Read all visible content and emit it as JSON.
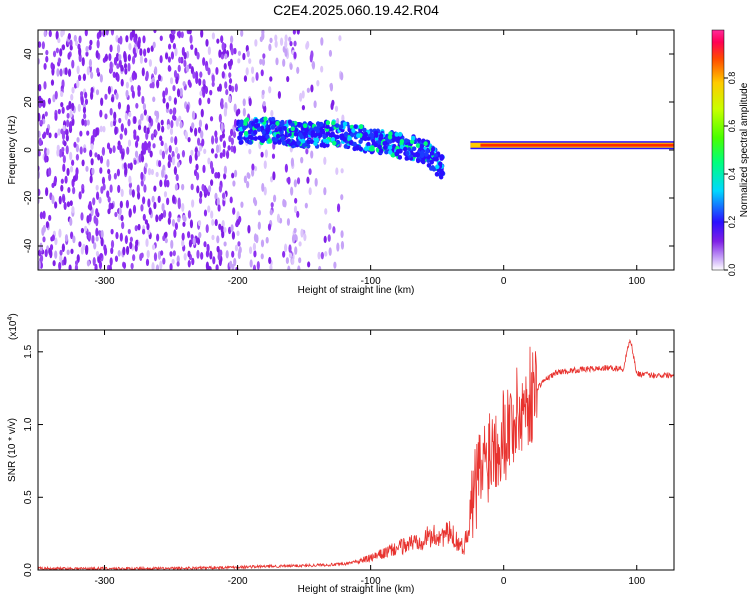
{
  "title": "C2E4.2025.060.19.42.R04",
  "chart_data": [
    {
      "type": "heatmap",
      "xlabel": "Height of straight line (km)",
      "ylabel": "Frequency (Hz)",
      "xlim": [
        -350,
        128
      ],
      "ylim": [
        -50,
        50
      ],
      "x_ticks": [
        -300,
        -200,
        -100,
        0,
        100
      ],
      "y_ticks": [
        -40,
        -20,
        0,
        20,
        40
      ],
      "colorbar": {
        "label": "Normalized spectral amplitude",
        "range": [
          0.0,
          1.0
        ],
        "ticks": [
          "0.0",
          "0.2",
          "0.4",
          "0.6",
          "0.8"
        ],
        "colors": [
          "#ffffff",
          "#c6a3f7",
          "#7f1fe6",
          "#2a0fff",
          "#00d8ff",
          "#00ff7a",
          "#48ff00",
          "#c8ff00",
          "#ffcb00",
          "#ff4a00",
          "#ff0055",
          "#ff2a9a"
        ]
      },
      "features": [
        {
          "desc": "scattered noise",
          "x_range": [
            -350,
            -120
          ],
          "freq_range": [
            -50,
            50
          ]
        },
        {
          "desc": "signal band",
          "x": [
            -200,
            -175,
            -150,
            -125,
            -100,
            -80,
            -60,
            -45
          ],
          "freq_center": [
            8,
            8,
            6,
            7,
            4,
            2,
            0,
            -8
          ]
        },
        {
          "desc": "stable tone",
          "x_range": [
            -25,
            128
          ],
          "freq": 2,
          "amplitude": 0.95
        }
      ]
    },
    {
      "type": "line",
      "xlabel": "Height of straight line (km)",
      "ylabel": "SNR (10 * v/v)",
      "multiplier": "(x10",
      "multiplier_exp": "4",
      "xlim": [
        -350,
        128
      ],
      "ylim": [
        0,
        1.65
      ],
      "x_ticks": [
        -300,
        -200,
        -100,
        0,
        100
      ],
      "y_ticks": [
        "0.0",
        "0.5",
        "1.0",
        "1.5"
      ],
      "color": "#e8332f",
      "series": [
        {
          "x": [
            -350,
            -300,
            -250,
            -200,
            -150,
            -120,
            -100,
            -80,
            -60,
            -40,
            -30,
            -20,
            -10,
            0,
            10,
            20,
            30,
            40,
            60,
            80,
            90,
            95,
            100,
            110,
            128
          ],
          "values": [
            0.01,
            0.01,
            0.01,
            0.02,
            0.03,
            0.04,
            0.08,
            0.15,
            0.22,
            0.25,
            0.15,
            0.6,
            0.85,
            0.95,
            1.05,
            1.2,
            1.3,
            1.36,
            1.38,
            1.39,
            1.38,
            1.6,
            1.35,
            1.34,
            1.34
          ]
        }
      ]
    }
  ]
}
